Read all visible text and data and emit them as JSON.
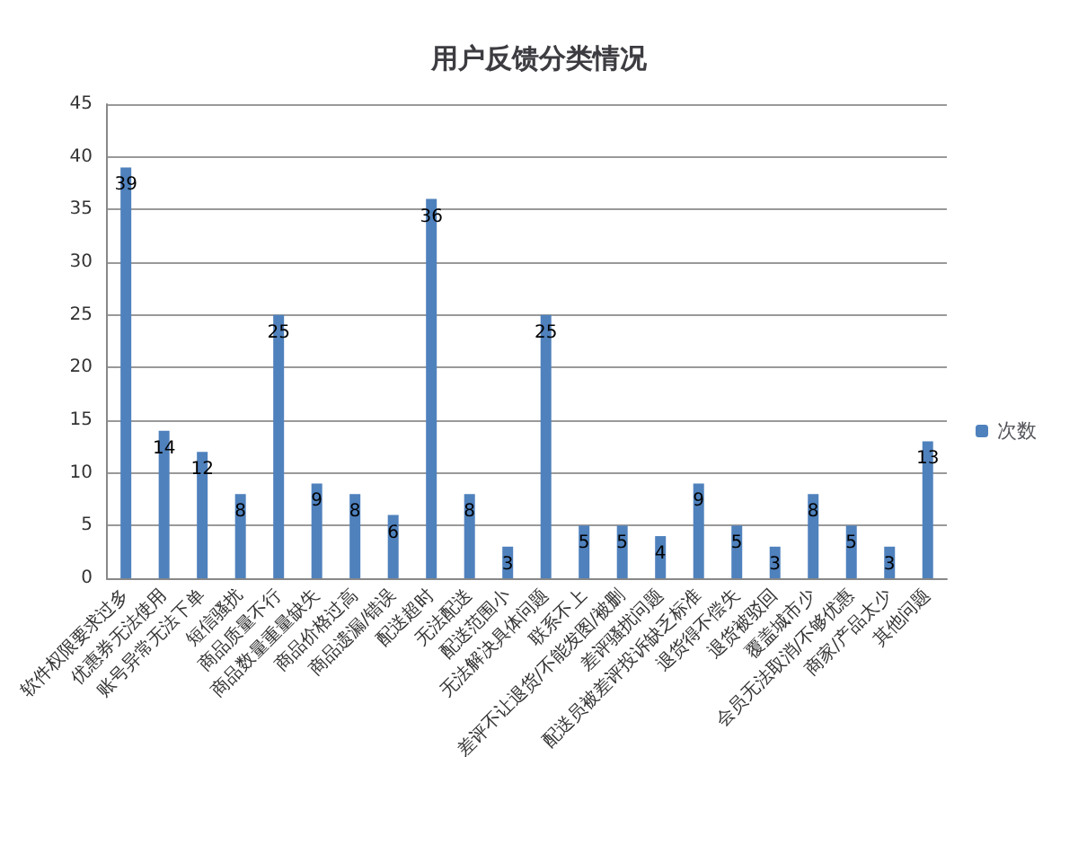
{
  "chart_data": {
    "type": "bar",
    "title": "用户反馈分类情况",
    "categories": [
      "软件权限要求过多",
      "优惠券无法使用",
      "账号异常无法下单",
      "短信骚扰",
      "商品质量不行",
      "商品数量重量缺失",
      "商品价格过高",
      "商品遗漏/错误",
      "配送超时",
      "无法配送",
      "配送范围小",
      "无法解决具体问题",
      "联系不上",
      "差评不让退货/不能发图/被删",
      "差评骚扰问题",
      "配送员被差评投诉缺乏标准",
      "退货得不偿失",
      "退货被驳回",
      "覆盖城市少",
      "会员无法取消/不够优惠",
      "商家/产品太少",
      "其他问题"
    ],
    "series": [
      {
        "name": "次数",
        "color": "#4f81bd",
        "values": [
          39,
          14,
          12,
          8,
          25,
          9,
          8,
          6,
          36,
          8,
          3,
          25,
          5,
          5,
          4,
          9,
          5,
          3,
          8,
          5,
          3,
          13
        ]
      }
    ],
    "ylim": [
      0,
      45
    ],
    "yticks": [
      0,
      5,
      10,
      15,
      20,
      25,
      30,
      35,
      40,
      45
    ],
    "grid": "y",
    "legend": "right",
    "data_labels": true
  }
}
